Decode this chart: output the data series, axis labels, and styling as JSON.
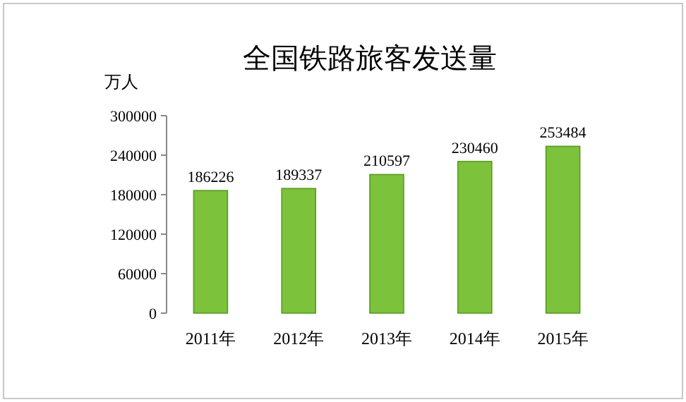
{
  "chart_data": {
    "type": "bar",
    "title": "全国铁路旅客发送量",
    "ylabel": "万人",
    "categories": [
      "2011年",
      "2012年",
      "2013年",
      "2014年",
      "2015年"
    ],
    "values": [
      186226,
      189337,
      210597,
      230460,
      253484
    ],
    "color": "#7cc23a",
    "ylim": [
      0,
      300000
    ],
    "yticks": [
      0,
      60000,
      120000,
      180000,
      240000,
      300000
    ],
    "data_labels": true
  }
}
